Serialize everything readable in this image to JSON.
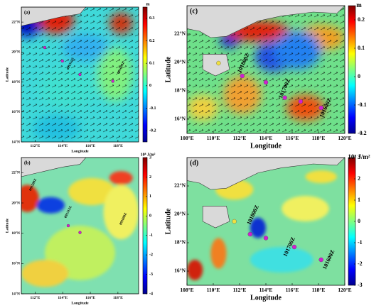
{
  "panels": [
    {
      "label": "(a)",
      "xlabel": "Longitude",
      "ylabel": "Latitude",
      "xlim": [
        111,
        119.5
      ],
      "ylim": [
        14,
        23
      ],
      "xticks": [
        {
          "value": 112,
          "label": "112°E"
        },
        {
          "value": 114,
          "label": "114°E"
        },
        {
          "value": 116,
          "label": "116°E"
        },
        {
          "value": 118,
          "label": "118°E"
        }
      ],
      "yticks": [
        {
          "value": 14,
          "label": "14°N"
        },
        {
          "value": 16,
          "label": "16°N"
        },
        {
          "value": 18,
          "label": "18°N"
        },
        {
          "value": 20,
          "label": "20°N"
        },
        {
          "value": 22,
          "label": "22°N"
        }
      ],
      "colorbar": {
        "unit": "m",
        "lim": [
          -0.25,
          0.35
        ],
        "ticks": [
          -0.2,
          -0.1,
          0,
          0.1,
          0.2,
          0.3
        ]
      },
      "annotations": [
        "091512Z",
        "091600Z"
      ]
    },
    {
      "label": "(b)",
      "xlabel": "Longitude",
      "ylabel": "Latitude",
      "xlim": [
        111,
        119.5
      ],
      "ylim": [
        14,
        23
      ],
      "xticks": [
        {
          "value": 112,
          "label": "112°E"
        },
        {
          "value": 114,
          "label": "114°E"
        },
        {
          "value": 116,
          "label": "116°E"
        },
        {
          "value": 118,
          "label": "118°E"
        }
      ],
      "yticks": [
        {
          "value": 14,
          "label": "14°N"
        },
        {
          "value": 16,
          "label": "16°N"
        },
        {
          "value": 18,
          "label": "18°N"
        },
        {
          "value": 20,
          "label": "20°N"
        },
        {
          "value": 22,
          "label": "22°N"
        }
      ],
      "colorbar": {
        "unit": "10⁸ J/m²",
        "lim": [
          -4,
          3
        ],
        "ticks": [
          -4,
          -3,
          -2,
          -1,
          0,
          1,
          2,
          3
        ]
      },
      "annotations": [
        "091500Z",
        "091512Z",
        "091600Z"
      ]
    },
    {
      "label": "(c)",
      "xlabel": "Longitude",
      "ylabel": "Latitude",
      "xlim": [
        108,
        120
      ],
      "ylim": [
        15,
        24
      ],
      "xticks": [
        {
          "value": 108,
          "label": "108°E"
        },
        {
          "value": 110,
          "label": "110°E"
        },
        {
          "value": 112,
          "label": "112°E"
        },
        {
          "value": 114,
          "label": "114°E"
        },
        {
          "value": 116,
          "label": "116°E"
        },
        {
          "value": 118,
          "label": "118°E"
        },
        {
          "value": 120,
          "label": "120°E"
        }
      ],
      "yticks": [
        {
          "value": 16,
          "label": "16°N"
        },
        {
          "value": 18,
          "label": "18°N"
        },
        {
          "value": 20,
          "label": "20°N"
        },
        {
          "value": 22,
          "label": "22°N"
        }
      ],
      "colorbar": {
        "unit": "m",
        "lim": [
          -0.2,
          0.25
        ],
        "ticks": [
          -0.2,
          -0.1,
          0,
          0.1,
          0.2
        ]
      },
      "annotations": [
        "101800Z",
        "101700Z",
        "101600Z"
      ]
    },
    {
      "label": "(d)",
      "xlabel": "Longitude",
      "ylabel": "Latitude",
      "xlim": [
        108,
        120
      ],
      "ylim": [
        15,
        24
      ],
      "xticks": [
        {
          "value": 108,
          "label": "108°E"
        },
        {
          "value": 110,
          "label": "110°E"
        },
        {
          "value": 112,
          "label": "112°E"
        },
        {
          "value": 114,
          "label": "114°E"
        },
        {
          "value": 116,
          "label": "116°E"
        },
        {
          "value": 118,
          "label": "118°E"
        },
        {
          "value": 120,
          "label": "120°E"
        }
      ],
      "yticks": [
        {
          "value": 16,
          "label": "16°N"
        },
        {
          "value": 18,
          "label": "18°N"
        },
        {
          "value": 20,
          "label": "20°N"
        },
        {
          "value": 22,
          "label": "22°N"
        }
      ],
      "colorbar": {
        "unit": "10⁸ J/m²",
        "lim": [
          -3,
          3
        ],
        "ticks": [
          -3,
          -2,
          -1,
          0,
          1,
          2,
          3
        ]
      },
      "annotations": [
        "101800Z",
        "101700Z",
        "101600Z"
      ]
    }
  ]
}
